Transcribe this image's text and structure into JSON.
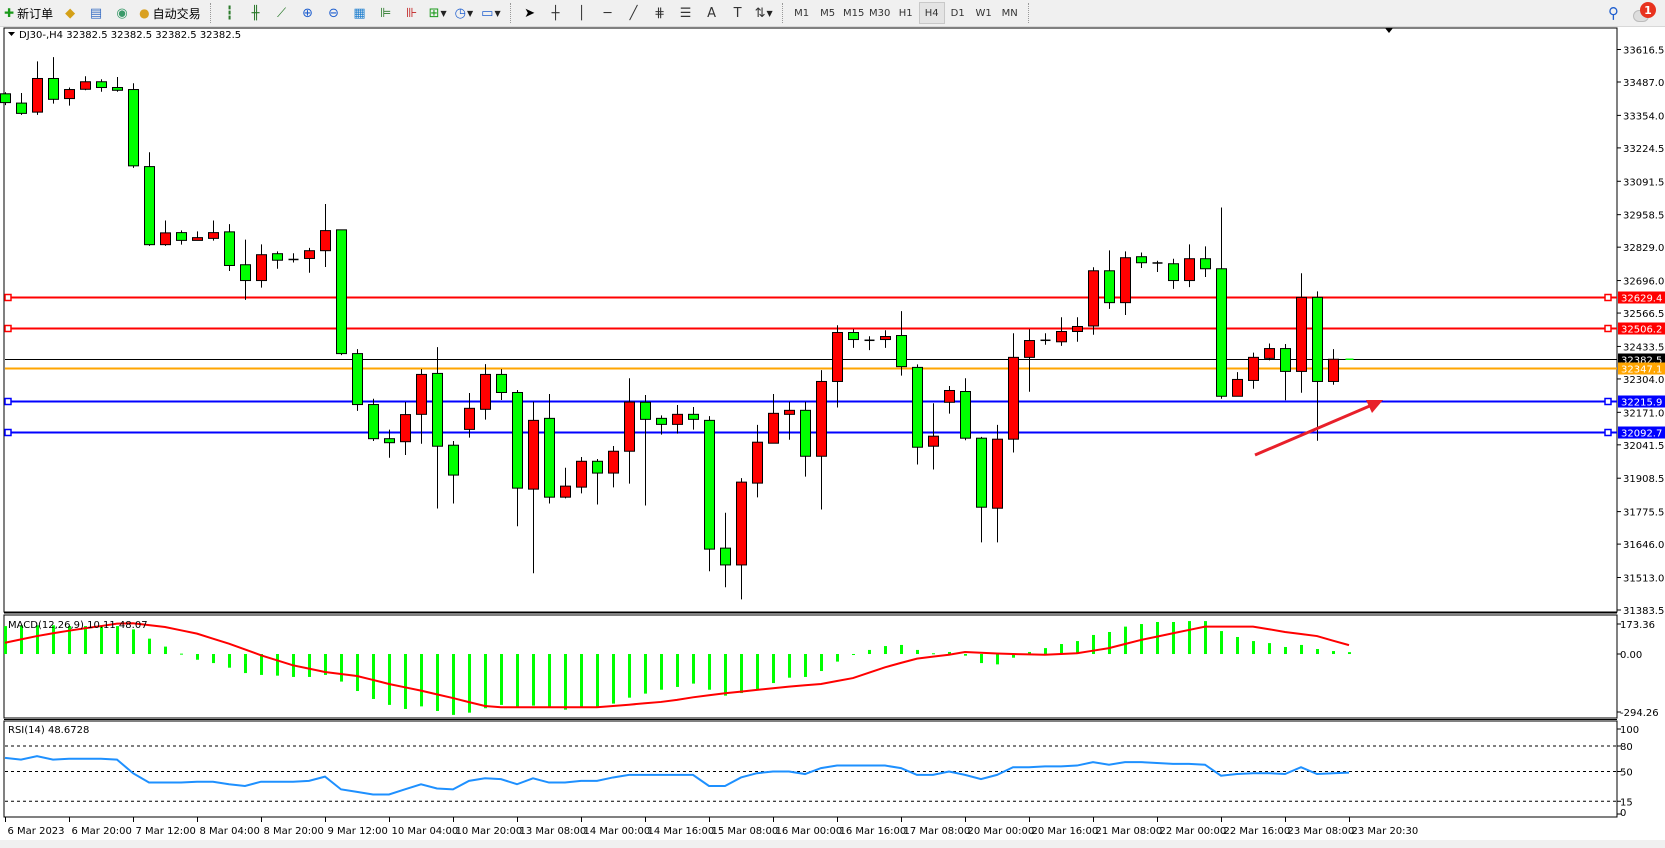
{
  "toolbar": {
    "left_items": [
      {
        "icon": "new-order-icon",
        "label": "新订单"
      },
      {
        "icon": "gold-icon"
      },
      {
        "icon": "history-icon"
      },
      {
        "icon": "signal-icon"
      },
      {
        "icon": "auto-trading-icon",
        "label": "自动交易"
      }
    ],
    "chart_tools": [
      "bar-chart-icon",
      "candlestick-icon",
      "line-chart-icon",
      "zoom-in-icon",
      "zoom-out-icon",
      "tile-windows-icon",
      "auto-scroll-icon",
      "chart-shift-icon",
      "indicators-icon",
      "periods-icon",
      "templates-icon"
    ],
    "draw_tools": [
      "cursor-icon",
      "crosshair-icon",
      "vertical-line-icon",
      "horizontal-line-icon",
      "trendline-icon",
      "fibonacci-icon",
      "fibo-fan-icon",
      "text-icon",
      "text-label-icon",
      "arrows-icon"
    ],
    "timeframes": [
      "M1",
      "M5",
      "M15",
      "M30",
      "H1",
      "H4",
      "D1",
      "W1",
      "MN"
    ],
    "active_timeframe": "H4",
    "notification_count": "1"
  },
  "chart": {
    "header": "DJ30-,H4  32382.5 32382.5 32382.5 32382.5",
    "symbol": "DJ30-",
    "timeframe": "H4",
    "price_ticks": [
      "33616.5",
      "33487.0",
      "33354.0",
      "33224.5",
      "33091.5",
      "32958.5",
      "32829.0",
      "32696.0",
      "32566.5",
      "32433.5",
      "32304.0",
      "32171.0",
      "32041.5",
      "31908.5",
      "31775.5",
      "31646.0",
      "31513.0",
      "31383.5"
    ],
    "price_range": [
      31383.5,
      33616.5
    ],
    "levels": [
      {
        "price": "32629.4",
        "color": "#ff0000",
        "kind": "resistance"
      },
      {
        "price": "32506.2",
        "color": "#ff0000",
        "kind": "resistance"
      },
      {
        "price": "32382.5",
        "color": "#000000",
        "kind": "bid"
      },
      {
        "price": "32347.1",
        "color": "#ffa500",
        "kind": "ask"
      },
      {
        "price": "32215.9",
        "color": "#0000ff",
        "kind": "support"
      },
      {
        "price": "32092.7",
        "color": "#0000ff",
        "kind": "support"
      }
    ],
    "colors": {
      "bull": "#ff0000",
      "bear": "#00ff00",
      "arrow": "#e8202a"
    },
    "time_labels": [
      {
        "bar": 1,
        "text": "6 Mar 2023"
      },
      {
        "bar": 5,
        "text": "6 Mar 20:00"
      },
      {
        "bar": 9,
        "text": "7 Mar 12:00"
      },
      {
        "bar": 13,
        "text": "8 Mar 04:00"
      },
      {
        "bar": 17,
        "text": "8 Mar 20:00"
      },
      {
        "bar": 21,
        "text": "9 Mar 12:00"
      },
      {
        "bar": 25,
        "text": "10 Mar 04:00"
      },
      {
        "bar": 29,
        "text": "10 Mar 20:00"
      },
      {
        "bar": 33,
        "text": "13 Mar 08:00"
      },
      {
        "bar": 37,
        "text": "14 Mar 00:00"
      },
      {
        "bar": 41,
        "text": "14 Mar 16:00"
      },
      {
        "bar": 45,
        "text": "15 Mar 08:00"
      },
      {
        "bar": 49,
        "text": "16 Mar 00:00"
      },
      {
        "bar": 53,
        "text": "16 Mar 16:00"
      },
      {
        "bar": 57,
        "text": "17 Mar 08:00"
      },
      {
        "bar": 61,
        "text": "20 Mar 00:00"
      },
      {
        "bar": 65,
        "text": "20 Mar 16:00"
      },
      {
        "bar": 69,
        "text": "21 Mar 08:00"
      },
      {
        "bar": 73,
        "text": "22 Mar 00:00"
      },
      {
        "bar": 77,
        "text": "22 Mar 16:00"
      },
      {
        "bar": 81,
        "text": "23 Mar 08:00"
      },
      {
        "bar": 85,
        "text": "23 Mar 20:30"
      }
    ]
  },
  "macd": {
    "label": "MACD(12,26,9) 10.11 48.07",
    "ticks": [
      "173.36",
      "0.00",
      "-294.26"
    ],
    "histogram_color": "#00ff00",
    "signal_color": "#ff0000"
  },
  "rsi": {
    "label": "RSI(14) 48.6728",
    "ticks": [
      "100",
      "80",
      "50",
      "15",
      "0"
    ],
    "levels": [
      80,
      50,
      15
    ],
    "line_color": "#1e90ff"
  },
  "chart_data": {
    "type": "candlestick",
    "ohlc": [
      [
        33440,
        33446,
        33395,
        33405
      ],
      [
        33403,
        33443,
        33356,
        33362
      ],
      [
        33367,
        33569,
        33356,
        33501
      ],
      [
        33501,
        33586,
        33401,
        33418
      ],
      [
        33421,
        33465,
        33393,
        33457
      ],
      [
        33458,
        33510,
        33454,
        33488
      ],
      [
        33488,
        33498,
        33448,
        33465
      ],
      [
        33465,
        33507,
        33448,
        33454
      ],
      [
        33457,
        33482,
        33145,
        33153
      ],
      [
        33150,
        33207,
        32834,
        32839
      ],
      [
        32839,
        32935,
        32834,
        32886
      ],
      [
        32887,
        32896,
        32839,
        32856
      ],
      [
        32856,
        32892,
        32856,
        32867
      ],
      [
        32864,
        32935,
        32855,
        32887
      ],
      [
        32890,
        32921,
        32734,
        32756
      ],
      [
        32759,
        32859,
        32619,
        32696
      ],
      [
        32696,
        32840,
        32668,
        32799
      ],
      [
        32803,
        32812,
        32743,
        32777
      ],
      [
        32780,
        32805,
        32768,
        32777
      ],
      [
        32784,
        32826,
        32727,
        32815
      ],
      [
        32815,
        33001,
        32750,
        32895
      ],
      [
        32898,
        32898,
        32399,
        32405
      ],
      [
        32405,
        32423,
        32177,
        32202
      ],
      [
        32202,
        32225,
        32057,
        32066
      ],
      [
        32066,
        32102,
        31990,
        32050
      ],
      [
        32054,
        32212,
        32001,
        32162
      ],
      [
        32163,
        32343,
        32046,
        32322
      ],
      [
        32326,
        32431,
        31788,
        32036
      ],
      [
        32040,
        32057,
        31808,
        31921
      ],
      [
        32103,
        32248,
        32070,
        32187
      ],
      [
        32183,
        32363,
        32142,
        32322
      ],
      [
        32322,
        32343,
        32220,
        32250
      ],
      [
        32250,
        32260,
        31717,
        31869
      ],
      [
        31865,
        32213,
        31530,
        32139
      ],
      [
        32147,
        32244,
        31808,
        31833
      ],
      [
        31833,
        31950,
        31828,
        31877
      ],
      [
        31873,
        31993,
        31848,
        31976
      ],
      [
        31976,
        31985,
        31804,
        31929
      ],
      [
        31929,
        32037,
        31872,
        32016
      ],
      [
        32016,
        32307,
        31887,
        32212
      ],
      [
        32211,
        32240,
        31800,
        32143
      ],
      [
        32147,
        32159,
        32082,
        32123
      ],
      [
        32123,
        32200,
        32086,
        32163
      ],
      [
        32163,
        32192,
        32102,
        32143
      ],
      [
        32139,
        32156,
        31538,
        31626
      ],
      [
        31630,
        31771,
        31474,
        31563
      ],
      [
        31563,
        31909,
        31426,
        31893
      ],
      [
        31889,
        32121,
        31832,
        32052
      ],
      [
        32048,
        32244,
        32048,
        32167
      ],
      [
        32163,
        32213,
        32062,
        32179
      ],
      [
        32179,
        32213,
        31915,
        31996
      ],
      [
        31996,
        32339,
        31784,
        32294
      ],
      [
        32294,
        32518,
        32190,
        32489
      ],
      [
        32489,
        32502,
        32428,
        32461
      ],
      [
        32458,
        32474,
        32419,
        32458
      ],
      [
        32461,
        32498,
        32428,
        32473
      ],
      [
        32477,
        32574,
        32317,
        32353
      ],
      [
        32350,
        32362,
        31963,
        32032
      ],
      [
        32036,
        32207,
        31943,
        32076
      ],
      [
        32211,
        32276,
        32166,
        32258
      ],
      [
        32254,
        32307,
        32060,
        32068
      ],
      [
        32068,
        32073,
        31653,
        31793
      ],
      [
        31789,
        32121,
        31653,
        32064
      ],
      [
        32064,
        32486,
        32011,
        32390
      ],
      [
        32390,
        32502,
        32253,
        32457
      ],
      [
        32458,
        32486,
        32440,
        32458
      ],
      [
        32452,
        32550,
        32436,
        32493
      ],
      [
        32493,
        32550,
        32452,
        32513
      ],
      [
        32515,
        32749,
        32480,
        32735
      ],
      [
        32735,
        32816,
        32583,
        32608
      ],
      [
        32608,
        32812,
        32559,
        32787
      ],
      [
        32791,
        32808,
        32746,
        32767
      ],
      [
        32766,
        32775,
        32730,
        32766
      ],
      [
        32763,
        32783,
        32663,
        32696
      ],
      [
        32696,
        32840,
        32670,
        32783
      ],
      [
        32783,
        32832,
        32710,
        32743
      ],
      [
        32743,
        32987,
        32225,
        32235
      ],
      [
        32235,
        32331,
        32235,
        32302
      ],
      [
        32298,
        32409,
        32265,
        32390
      ],
      [
        32386,
        32445,
        32378,
        32425
      ],
      [
        32425,
        32443,
        32219,
        32334
      ],
      [
        32334,
        32725,
        32249,
        32629
      ],
      [
        32629,
        32653,
        32058,
        32294
      ],
      [
        32294,
        32423,
        32281,
        32382.5
      ],
      [
        32382.5,
        32382.5,
        32382.5,
        32382.5
      ]
    ],
    "macd_histogram": [
      151,
      155,
      155,
      155,
      151,
      151,
      155,
      151,
      133,
      83,
      40,
      2,
      -31,
      -49,
      -74,
      -103,
      -113,
      -117,
      -124,
      -124,
      -113,
      -149,
      -200,
      -243,
      -275,
      -297,
      -283,
      -308,
      -329,
      -317,
      -293,
      -275,
      -290,
      -279,
      -290,
      -301,
      -290,
      -286,
      -268,
      -236,
      -214,
      -193,
      -178,
      -160,
      -193,
      -225,
      -211,
      -189,
      -157,
      -128,
      -124,
      -92,
      -41,
      -4,
      22,
      43,
      49,
      22,
      4,
      11,
      -9,
      -49,
      -56,
      -20,
      11,
      32,
      54,
      70,
      103,
      119,
      148,
      162,
      173,
      173,
      178,
      178,
      124,
      92,
      70,
      59,
      38,
      49,
      27,
      16,
      10.11
    ],
    "macd_signal": [
      61,
      79,
      97,
      112,
      126,
      139,
      151,
      164,
      166,
      156,
      146,
      128,
      110,
      83,
      56,
      25,
      -7,
      -34,
      -61,
      -79,
      -97,
      -108,
      -119,
      -140,
      -162,
      -180,
      -198,
      -218,
      -238,
      -260,
      -281,
      -288,
      -288,
      -288,
      -288,
      -288,
      -288,
      -288,
      -281,
      -274,
      -266,
      -259,
      -248,
      -234,
      -223,
      -212,
      -203,
      -194,
      -185,
      -176,
      -169,
      -162,
      -146,
      -130,
      -101,
      -72,
      -48,
      -25,
      -14,
      -4,
      11,
      7,
      3,
      0,
      -2,
      -4,
      0,
      4,
      18,
      32,
      54,
      76,
      94,
      112,
      130,
      148,
      148,
      148,
      148,
      134,
      119,
      108,
      97,
      72,
      48.07
    ],
    "rsi": [
      66,
      64,
      68,
      64,
      65,
      65,
      65,
      64,
      48,
      37,
      37,
      37,
      38,
      38,
      35,
      33,
      38,
      38,
      38,
      39,
      44,
      29,
      26,
      23,
      23,
      29,
      35,
      30,
      29,
      39,
      42,
      41,
      35,
      42,
      37,
      37,
      39,
      39,
      43,
      46,
      46,
      46,
      46,
      46,
      33,
      33,
      43,
      48,
      50,
      50,
      47,
      54,
      57,
      57,
      57,
      57,
      54,
      46,
      46,
      50,
      46,
      41,
      46,
      55,
      55,
      56,
      56,
      57,
      61,
      58,
      61,
      61,
      60,
      59,
      59,
      58,
      45,
      47,
      48,
      48,
      47,
      55,
      47,
      48,
      48.67
    ],
    "macd_range": [
      -335,
      200
    ],
    "rsi_range": [
      0,
      100
    ]
  }
}
